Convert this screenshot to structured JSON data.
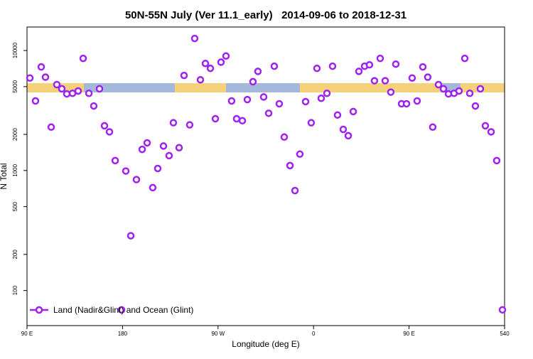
{
  "chart_data": {
    "type": "scatter",
    "title": "50N-55N July (Ver 11.1_early)   2014-09-06 to 2018-12-31",
    "xlabel": "Longitude (deg E)",
    "ylabel": "N Total",
    "log_y": true,
    "legend": "bottom-left",
    "x": [
      92.7,
      98.0,
      103.4,
      107.4,
      112.8,
      118.1,
      122.8,
      127.5,
      132.9,
      138.2,
      142.9,
      148.3,
      152.9,
      158.3,
      163.0,
      167.7,
      173.1,
      179.1,
      183.1,
      187.8,
      193.1,
      198.5,
      203.2,
      208.5,
      213.2,
      218.6,
      223.9,
      227.9,
      233.3,
      238.0,
      243.3,
      248.0,
      253.4,
      258.1,
      262.8,
      267.5,
      272.8,
      277.5,
      282.8,
      287.5,
      292.9,
      297.6,
      302.9,
      307.6,
      313.0,
      317.7,
      323.0,
      327.7,
      332.4,
      337.8,
      342.5,
      347.1,
      352.5,
      357.8,
      363.2,
      367.2,
      372.6,
      377.9,
      382.6,
      388.0,
      392.7,
      397.4,
      402.7,
      408.1,
      412.7,
      417.4,
      422.8,
      427.5,
      432.8,
      437.5,
      442.9,
      447.6,
      452.9,
      457.6,
      463.0,
      467.6,
      472.3,
      477.7,
      482.4,
      487.1,
      492.4,
      497.1,
      502.5,
      507.2,
      512.5,
      517.2,
      521.9,
      527.3,
      532.6,
      538.0
    ],
    "series": [
      {
        "name": "Land (Nadir&Glint) and Ocean (Glint)",
        "color": "#a020f0",
        "values": [
          5900,
          3800,
          7300,
          6000,
          2300,
          5200,
          4800,
          4350,
          4400,
          4600,
          8600,
          4400,
          3450,
          4800,
          2360,
          2100,
          1210,
          69,
          990,
          286,
          840,
          1500,
          1700,
          720,
          1040,
          1600,
          1330,
          2500,
          1550,
          6200,
          2400,
          12600,
          5700,
          7800,
          7100,
          2700,
          8000,
          9000,
          3800,
          2700,
          2600,
          3900,
          5500,
          6700,
          4100,
          3000,
          7400,
          3600,
          1900,
          1100,
          680,
          1370,
          3750,
          2500,
          7100,
          4000,
          4400,
          7400,
          2900,
          2200,
          1950,
          3100,
          6700,
          7400,
          7600,
          5600,
          8600,
          5600,
          4500,
          7700,
          3600,
          3600,
          5900,
          3800,
          7300,
          6000,
          2300,
          5200,
          4800,
          4350,
          4400,
          4600,
          8600,
          4400,
          3450,
          4800,
          2360,
          2100,
          1210,
          69
        ]
      }
    ],
    "xlim": [
      90,
      540
    ],
    "xticks": [
      {
        "value": 90,
        "label": "90 E"
      },
      180,
      {
        "value": 270,
        "label": "90 W"
      },
      {
        "value": 360,
        "label": "0"
      },
      {
        "value": 450,
        "label": "90 E"
      },
      540
    ],
    "ylim": [
      51,
      15700
    ],
    "yticks": [
      100,
      200,
      500,
      1000,
      2000,
      5000,
      10000
    ]
  }
}
